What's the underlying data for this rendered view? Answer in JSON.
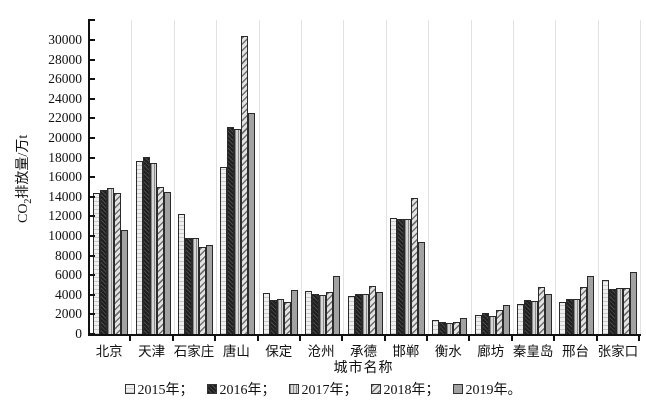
{
  "chart_data": {
    "type": "bar",
    "title": "",
    "xlabel": "城市名称",
    "ylabel": "CO2排放量/万t",
    "ylabel_parts": {
      "prefix": "CO",
      "sub": "2",
      "suffix": "排放量/万t"
    },
    "ylim": [
      0,
      32000
    ],
    "ytick_step": 2000,
    "yticks": [
      0,
      2000,
      4000,
      6000,
      8000,
      10000,
      12000,
      14000,
      16000,
      18000,
      20000,
      22000,
      24000,
      26000,
      28000,
      30000
    ],
    "grid": "vertical-separators-between-groups",
    "legend_position": "bottom",
    "categories": [
      "北京",
      "天津",
      "石家庄",
      "唐山",
      "保定",
      "沧州",
      "承德",
      "邯郸",
      "衡水",
      "廊坊",
      "秦皇岛",
      "邢台",
      "张家口"
    ],
    "series": [
      {
        "name": "2015年",
        "legend_label": "2015年；",
        "pattern": "light-horizontal-dash",
        "values": [
          14400,
          17700,
          12200,
          17000,
          4200,
          4400,
          3900,
          11800,
          1400,
          1900,
          3050,
          3300,
          5500
        ]
      },
      {
        "name": "2016年",
        "legend_label": "2016年；",
        "pattern": "dark-speckled",
        "values": [
          14650,
          18100,
          9850,
          21100,
          3500,
          4100,
          4050,
          11700,
          1200,
          2100,
          3500,
          3600,
          4550
        ]
      },
      {
        "name": "2017年",
        "legend_label": "2017年；",
        "pattern": "gray-vertical-lines",
        "values": [
          14900,
          17450,
          9800,
          20950,
          3550,
          4000,
          4050,
          11700,
          1150,
          1850,
          3400,
          3600,
          4700
        ]
      },
      {
        "name": "2018年",
        "legend_label": "2018年；",
        "pattern": "diagonal-hatch",
        "values": [
          14350,
          15050,
          8900,
          30450,
          3300,
          4250,
          4950,
          13900,
          1200,
          2450,
          4800,
          4800,
          4700
        ]
      },
      {
        "name": "2019年",
        "legend_label": "2019年。",
        "pattern": "plain-gray",
        "values": [
          10600,
          14500,
          9050,
          22600,
          4450,
          5950,
          4250,
          9400,
          1650,
          2950,
          4100,
          5900,
          6300
        ]
      }
    ]
  },
  "colors": {
    "background": "#ffffff",
    "axis": "#111111",
    "group_separator": "#e2e2e2",
    "bar_outline": "#2a2a2a",
    "bar_2015": "#e8e8e8",
    "bar_2016": "#333333",
    "bar_2017": "#bdbdbd",
    "bar_2018": "#cccccc",
    "bar_2019": "#a2a2a2"
  }
}
